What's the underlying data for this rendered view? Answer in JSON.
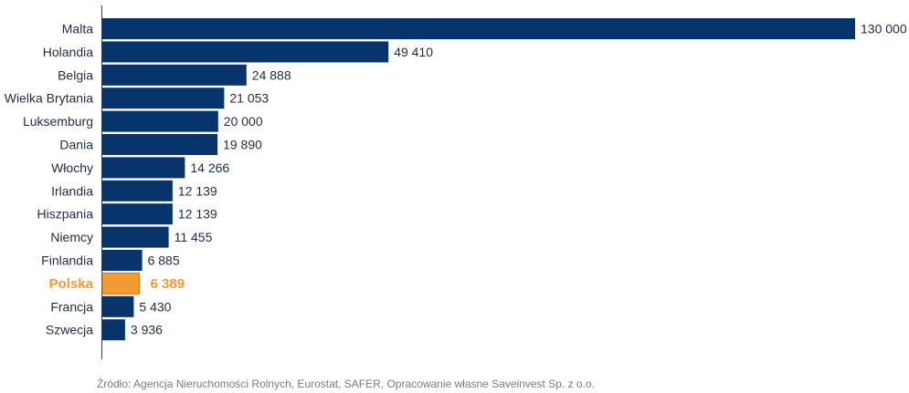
{
  "chart_data": {
    "type": "bar",
    "orientation": "horizontal",
    "categories": [
      "Malta",
      "Holandia",
      "Belgia",
      "Wielka Brytania",
      "Luksemburg",
      "Dania",
      "Włochy",
      "Irlandia",
      "Hiszpania",
      "Niemcy",
      "Finlandia",
      "Polska",
      "Francja",
      "Szwecja"
    ],
    "values": [
      130000,
      49410,
      24888,
      21053,
      20000,
      19890,
      14266,
      12139,
      12139,
      11455,
      6885,
      6389,
      5430,
      3936
    ],
    "value_labels": [
      "130 000",
      "49 410",
      "24 888",
      "21 053",
      "20 000",
      "19 890",
      "14 266",
      "12 139",
      "12 139",
      "11 455",
      "6 885",
      "6 389",
      "5 430",
      "3 936"
    ],
    "highlight": "Polska",
    "xlim": [
      0,
      130000
    ],
    "grid": false,
    "colors": {
      "bar": "#06346b",
      "highlight": "#f39a33"
    }
  },
  "source": "Źródło: Agencja Nieruchomości Rolnych, Eurostat, SAFER, Opracowanie własne Saveinvest Sp. z o.o."
}
